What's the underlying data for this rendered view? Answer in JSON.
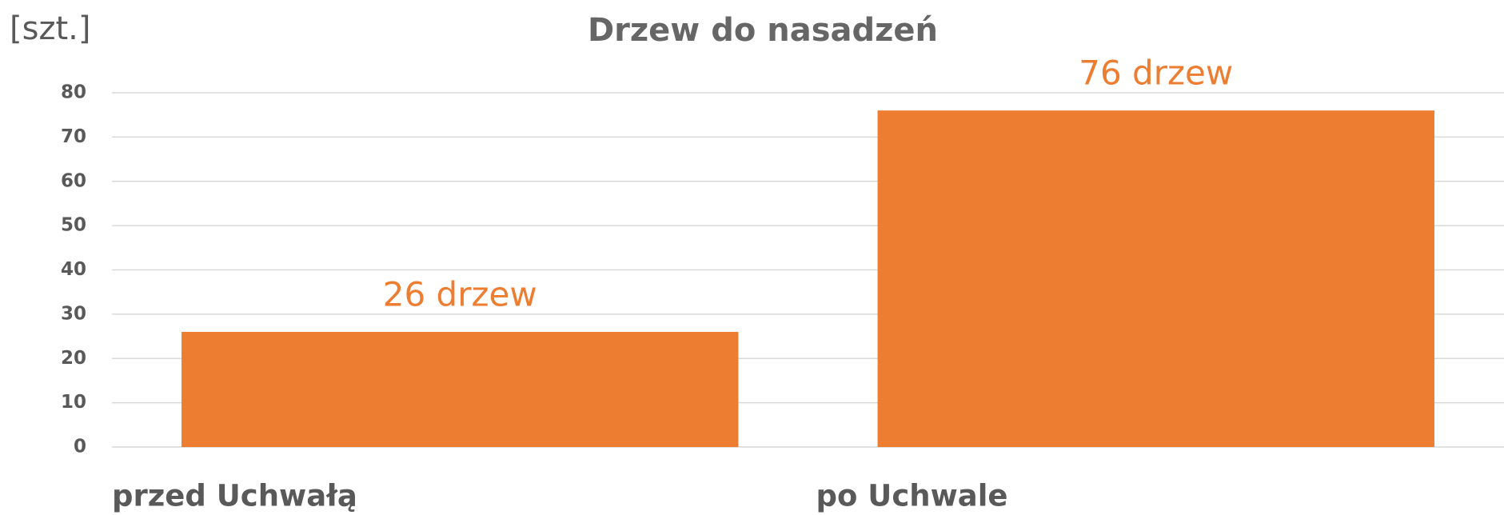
{
  "chart_data": {
    "type": "bar",
    "title": "Drzew do nasadzeń",
    "y_label": "[szt.]",
    "categories": [
      "przed Uchwałą",
      "po Uchwale"
    ],
    "values": [
      26,
      76
    ],
    "value_labels": [
      "26 drzew",
      "76 drzew"
    ],
    "color": "#ed7d31",
    "ylim": [
      0,
      80
    ],
    "yticks": [
      0,
      10,
      20,
      30,
      40,
      50,
      60,
      70,
      80
    ],
    "grid": true
  }
}
